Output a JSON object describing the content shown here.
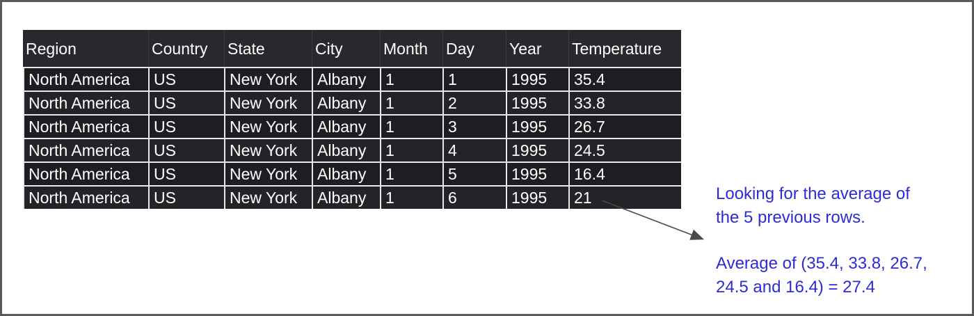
{
  "table": {
    "columns": [
      "Region",
      "Country",
      "State",
      "City",
      "Month",
      "Day",
      "Year",
      "Temperature"
    ],
    "rows": [
      [
        "North America",
        "US",
        "New York",
        "Albany",
        "1",
        "1",
        "1995",
        "35.4"
      ],
      [
        "North America",
        "US",
        "New York",
        "Albany",
        "1",
        "2",
        "1995",
        "33.8"
      ],
      [
        "North America",
        "US",
        "New York",
        "Albany",
        "1",
        "3",
        "1995",
        "26.7"
      ],
      [
        "North America",
        "US",
        "New York",
        "Albany",
        "1",
        "4",
        "1995",
        "24.5"
      ],
      [
        "North America",
        "US",
        "New York",
        "Albany",
        "1",
        "5",
        "1995",
        "16.4"
      ],
      [
        "North America",
        "US",
        "New York",
        "Albany",
        "1",
        "6",
        "1995",
        "21"
      ]
    ]
  },
  "annotation": {
    "line1": "Looking for the average of",
    "line2": "the 5 previous rows.",
    "line3": "Average of (35.4, 33.8, 26.7,",
    "line4": "24.5 and 16.4) = 27.4",
    "color": "#2d2bd8"
  }
}
